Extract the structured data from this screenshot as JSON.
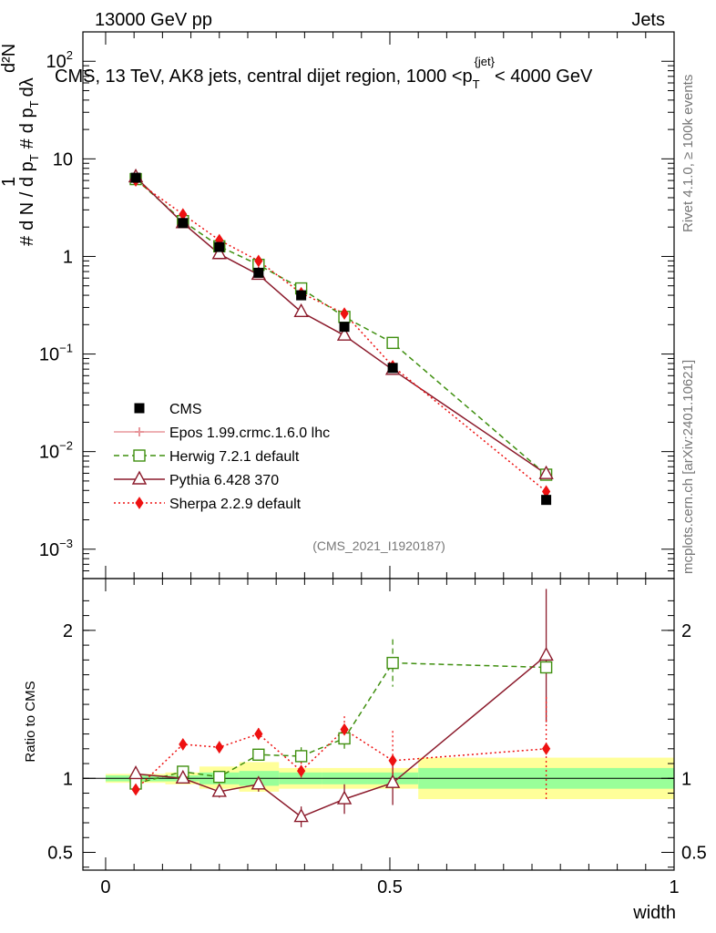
{
  "header": {
    "left": "13000 GeV pp",
    "right": "Jets"
  },
  "title": {
    "pre": "CMS, 13 TeV, AK8 jets, central dijet region, 1000 <p",
    "sub": "T",
    "sup": "{jet}",
    "post": "< 4000 GeV"
  },
  "side_text": {
    "rivet": "Rivet 4.1.0, ≥ 100k events",
    "site": "mcplots.cern.ch [arXiv:2401.10621]"
  },
  "analysis_label": "(CMS_2021_I1920187)",
  "chart_data": {
    "type": "scatter",
    "main": {
      "yscale": "log",
      "ylim": [
        0.0005,
        200
      ],
      "xlim": [
        -0.04,
        1.0
      ],
      "yticks": [
        {
          "v": 0.001,
          "b": "10",
          "e": "−3"
        },
        {
          "v": 0.01,
          "b": "10",
          "e": "−2"
        },
        {
          "v": 0.1,
          "b": "10",
          "e": "−1"
        },
        {
          "v": 1,
          "b": "1",
          "e": ""
        },
        {
          "v": 10,
          "b": "10",
          "e": ""
        },
        {
          "v": 100,
          "b": "10",
          "e": "2"
        }
      ],
      "ylabel": {
        "frac_top": "1",
        "frac_bottom": "d N / d p",
        "frac_bottom_sub": "T",
        "hash": "#",
        "d2_top": "d²N",
        "d2_bottom": "d p",
        "d2_bottom_sub": "T",
        "d2_bottom_end": "dλ",
        "prefix": "#"
      }
    },
    "ratio": {
      "ylim": [
        0.38,
        2.35
      ],
      "yticks": [
        {
          "v": 0.5,
          "label": "0.5"
        },
        {
          "v": 1,
          "label": "1"
        },
        {
          "v": 2,
          "label": "2"
        }
      ],
      "ylabel": "Ratio to CMS"
    },
    "xticks": [
      {
        "v": 0,
        "label": "0"
      },
      {
        "v": 0.5,
        "label": "0.5"
      },
      {
        "v": 1,
        "label": "1"
      }
    ],
    "xlabel": "width",
    "cms": {
      "name": "CMS",
      "x": [
        0.053,
        0.136,
        0.2,
        0.269,
        0.344,
        0.42,
        0.505,
        0.775
      ],
      "y": [
        6.4,
        2.2,
        1.25,
        0.68,
        0.4,
        0.19,
        0.072,
        0.0032
      ]
    },
    "bins": [
      {
        "lo": 0.0,
        "hi": 0.105,
        "g_lo": 0.98,
        "g_hi": 1.02,
        "y_lo": 0.97,
        "y_hi": 1.03
      },
      {
        "lo": 0.105,
        "hi": 0.165,
        "g_lo": 0.98,
        "g_hi": 1.02,
        "y_lo": 0.96,
        "y_hi": 1.04
      },
      {
        "lo": 0.165,
        "hi": 0.235,
        "g_lo": 0.96,
        "g_hi": 1.04,
        "y_lo": 0.93,
        "y_hi": 1.08
      },
      {
        "lo": 0.235,
        "hi": 0.305,
        "g_lo": 0.95,
        "g_hi": 1.05,
        "y_lo": 0.91,
        "y_hi": 1.11
      },
      {
        "lo": 0.305,
        "hi": 0.38,
        "g_lo": 0.96,
        "g_hi": 1.04,
        "y_lo": 0.93,
        "y_hi": 1.07
      },
      {
        "lo": 0.38,
        "hi": 0.46,
        "g_lo": 0.96,
        "g_hi": 1.04,
        "y_lo": 0.93,
        "y_hi": 1.07
      },
      {
        "lo": 0.46,
        "hi": 0.55,
        "g_lo": 0.96,
        "g_hi": 1.04,
        "y_lo": 0.93,
        "y_hi": 1.07
      },
      {
        "lo": 0.55,
        "hi": 1.0,
        "g_lo": 0.93,
        "g_hi": 1.07,
        "y_lo": 0.86,
        "y_hi": 1.14
      }
    ],
    "series": [
      {
        "name": "Epos 1.99.crmc.1.6.0 lhc",
        "color": "#e8979b",
        "marker": "cross",
        "dash": "",
        "y": [],
        "ratio": [],
        "ratio_err": []
      },
      {
        "name": "Herwig 7.2.1 default",
        "color": "#3f8f0f",
        "marker": "square",
        "dash": "6,4",
        "y": [
          6.2,
          2.3,
          1.27,
          0.82,
          0.47,
          0.24,
          0.13,
          0.0058
        ],
        "ratio": [
          0.965,
          1.045,
          1.01,
          1.16,
          1.15,
          1.27,
          1.78,
          1.75
        ],
        "ratio_err": [
          0.01,
          0.02,
          0.03,
          0.04,
          0.06,
          0.09,
          0.16,
          0.0
        ]
      },
      {
        "name": "Pythia 6.428 370",
        "color": "#8b1a2b",
        "marker": "triangle",
        "dash": "",
        "y": [
          6.5,
          2.2,
          1.06,
          0.65,
          0.27,
          0.155,
          0.069,
          0.0059
        ],
        "ratio": [
          1.03,
          1.0,
          0.91,
          0.96,
          0.74,
          0.86,
          0.97,
          1.83
        ],
        "ratio_err": [
          0.01,
          0.03,
          0.04,
          0.05,
          0.07,
          0.1,
          0.15,
          0.45
        ]
      },
      {
        "name": "Sherpa 2.2.9 default",
        "color": "#ee1111",
        "marker": "diamond",
        "dash": "2,3",
        "y": [
          6.0,
          2.7,
          1.47,
          0.9,
          0.42,
          0.26,
          0.075,
          0.0039
        ],
        "ratio": [
          0.925,
          1.23,
          1.21,
          1.3,
          1.05,
          1.33,
          1.12,
          1.2
        ],
        "ratio_err": [
          0.01,
          0.03,
          0.04,
          0.04,
          0.06,
          0.09,
          0.2,
          0.35
        ]
      }
    ]
  }
}
